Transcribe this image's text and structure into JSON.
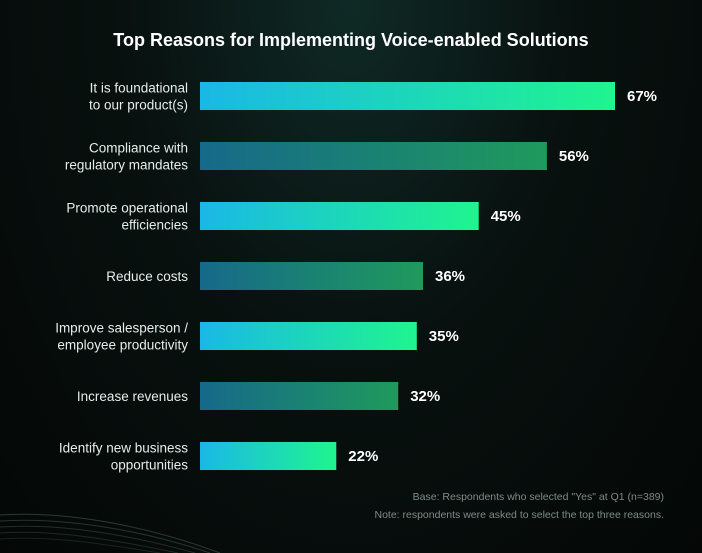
{
  "colors": {
    "bright_gradient": [
      "#1ab8e6",
      "#1ff58e"
    ],
    "dark_gradient": [
      "#16698a",
      "#1f9a5c"
    ]
  },
  "chart_data": {
    "type": "bar",
    "orientation": "horizontal",
    "title": "Top Reasons for Implementing Voice-enabled Solutions",
    "categories": [
      [
        "It is foundational",
        "to our product(s)"
      ],
      [
        "Compliance with",
        "regulatory mandates"
      ],
      [
        "Promote operational",
        "efficiencies"
      ],
      [
        "Reduce costs"
      ],
      [
        "Improve salesperson /",
        "employee productivity"
      ],
      [
        "Increase revenues"
      ],
      [
        "Identify new business",
        "opportunities"
      ]
    ],
    "values": [
      67,
      56,
      45,
      36,
      35,
      32,
      22
    ],
    "value_labels": [
      "67%",
      "56%",
      "45%",
      "36%",
      "35%",
      "32%",
      "22%"
    ],
    "bar_style": [
      "bright",
      "dark",
      "bright",
      "dark",
      "bright",
      "dark",
      "bright"
    ],
    "xlim": [
      0,
      100
    ],
    "unit": "%"
  },
  "footnotes": {
    "base": "Base: Respondents who selected \"Yes\" at Q1 (n=389)",
    "note": "Note: respondents were asked to select the top three reasons."
  }
}
